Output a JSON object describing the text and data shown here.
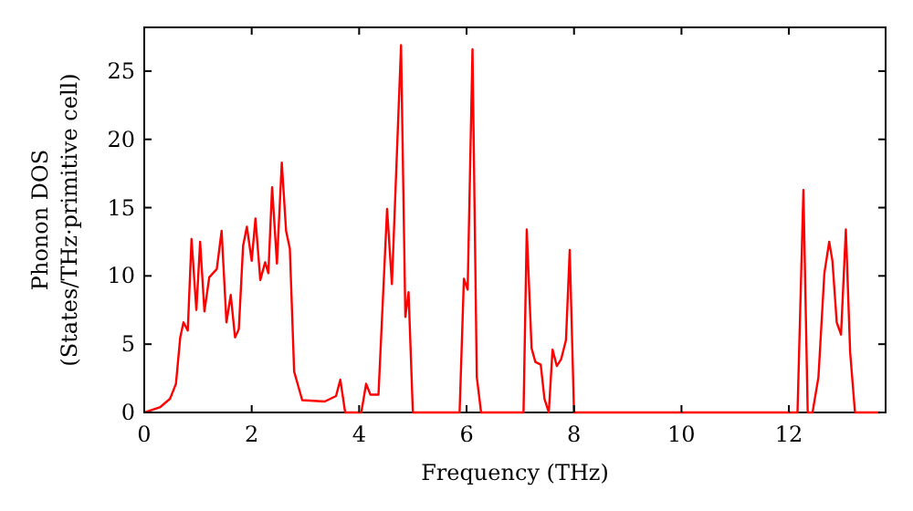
{
  "chart_data": {
    "type": "line",
    "xlabel": "Frequency (THz)",
    "ylabel": "Phonon DOS\n(States/THz·primitive cell)",
    "x": [
      0,
      0.3,
      0.48,
      0.59,
      0.67,
      0.73,
      0.81,
      0.88,
      0.97,
      1.04,
      1.12,
      1.21,
      1.35,
      1.44,
      1.53,
      1.61,
      1.69,
      1.76,
      1.84,
      1.91,
      2.0,
      2.07,
      2.16,
      2.25,
      2.31,
      2.38,
      2.47,
      2.56,
      2.64,
      2.71,
      2.79,
      2.94,
      3.36,
      3.57,
      3.65,
      3.74,
      4.04,
      4.13,
      4.21,
      4.36,
      4.52,
      4.61,
      4.78,
      4.86,
      4.92,
      5.0,
      5.87,
      5.95,
      6.02,
      6.11,
      6.19,
      6.27,
      7.06,
      7.12,
      7.21,
      7.28,
      7.38,
      7.45,
      7.53,
      7.6,
      7.68,
      7.76,
      7.85,
      7.92,
      8.0,
      12.16,
      12.27,
      12.35,
      12.44,
      12.55,
      12.66,
      12.75,
      12.81,
      12.89,
      12.97,
      13.06,
      13.14,
      13.23,
      13.7
    ],
    "series": [
      {
        "color": "#ff0000",
        "values": [
          0,
          0.4,
          1.0,
          2.1,
          5.5,
          6.6,
          6.0,
          12.7,
          7.5,
          12.5,
          7.4,
          9.9,
          10.5,
          13.3,
          6.6,
          8.6,
          5.5,
          6.1,
          12.2,
          13.6,
          11.1,
          14.2,
          9.7,
          11.0,
          10.2,
          16.5,
          10.9,
          18.3,
          13.3,
          12.0,
          3.0,
          0.9,
          0.8,
          1.2,
          2.4,
          0,
          0,
          2.1,
          1.3,
          1.3,
          14.9,
          9.4,
          26.9,
          7.0,
          8.8,
          0,
          0,
          9.8,
          9.0,
          26.6,
          2.6,
          0,
          0,
          13.4,
          4.7,
          3.7,
          3.5,
          1.0,
          0,
          4.6,
          3.4,
          3.9,
          5.3,
          11.9,
          0,
          0,
          16.3,
          0,
          0,
          2.6,
          10.2,
          12.5,
          11.1,
          6.6,
          5.7,
          13.4,
          4.4,
          0,
          0
        ]
      }
    ],
    "xlim": [
      0,
      13.8
    ],
    "xticks": [
      0,
      2,
      4,
      6,
      8,
      10,
      12
    ],
    "ylim": [
      0,
      28.2
    ],
    "yticks": [
      0,
      5,
      10,
      15,
      20,
      25
    ],
    "grid": false
  }
}
